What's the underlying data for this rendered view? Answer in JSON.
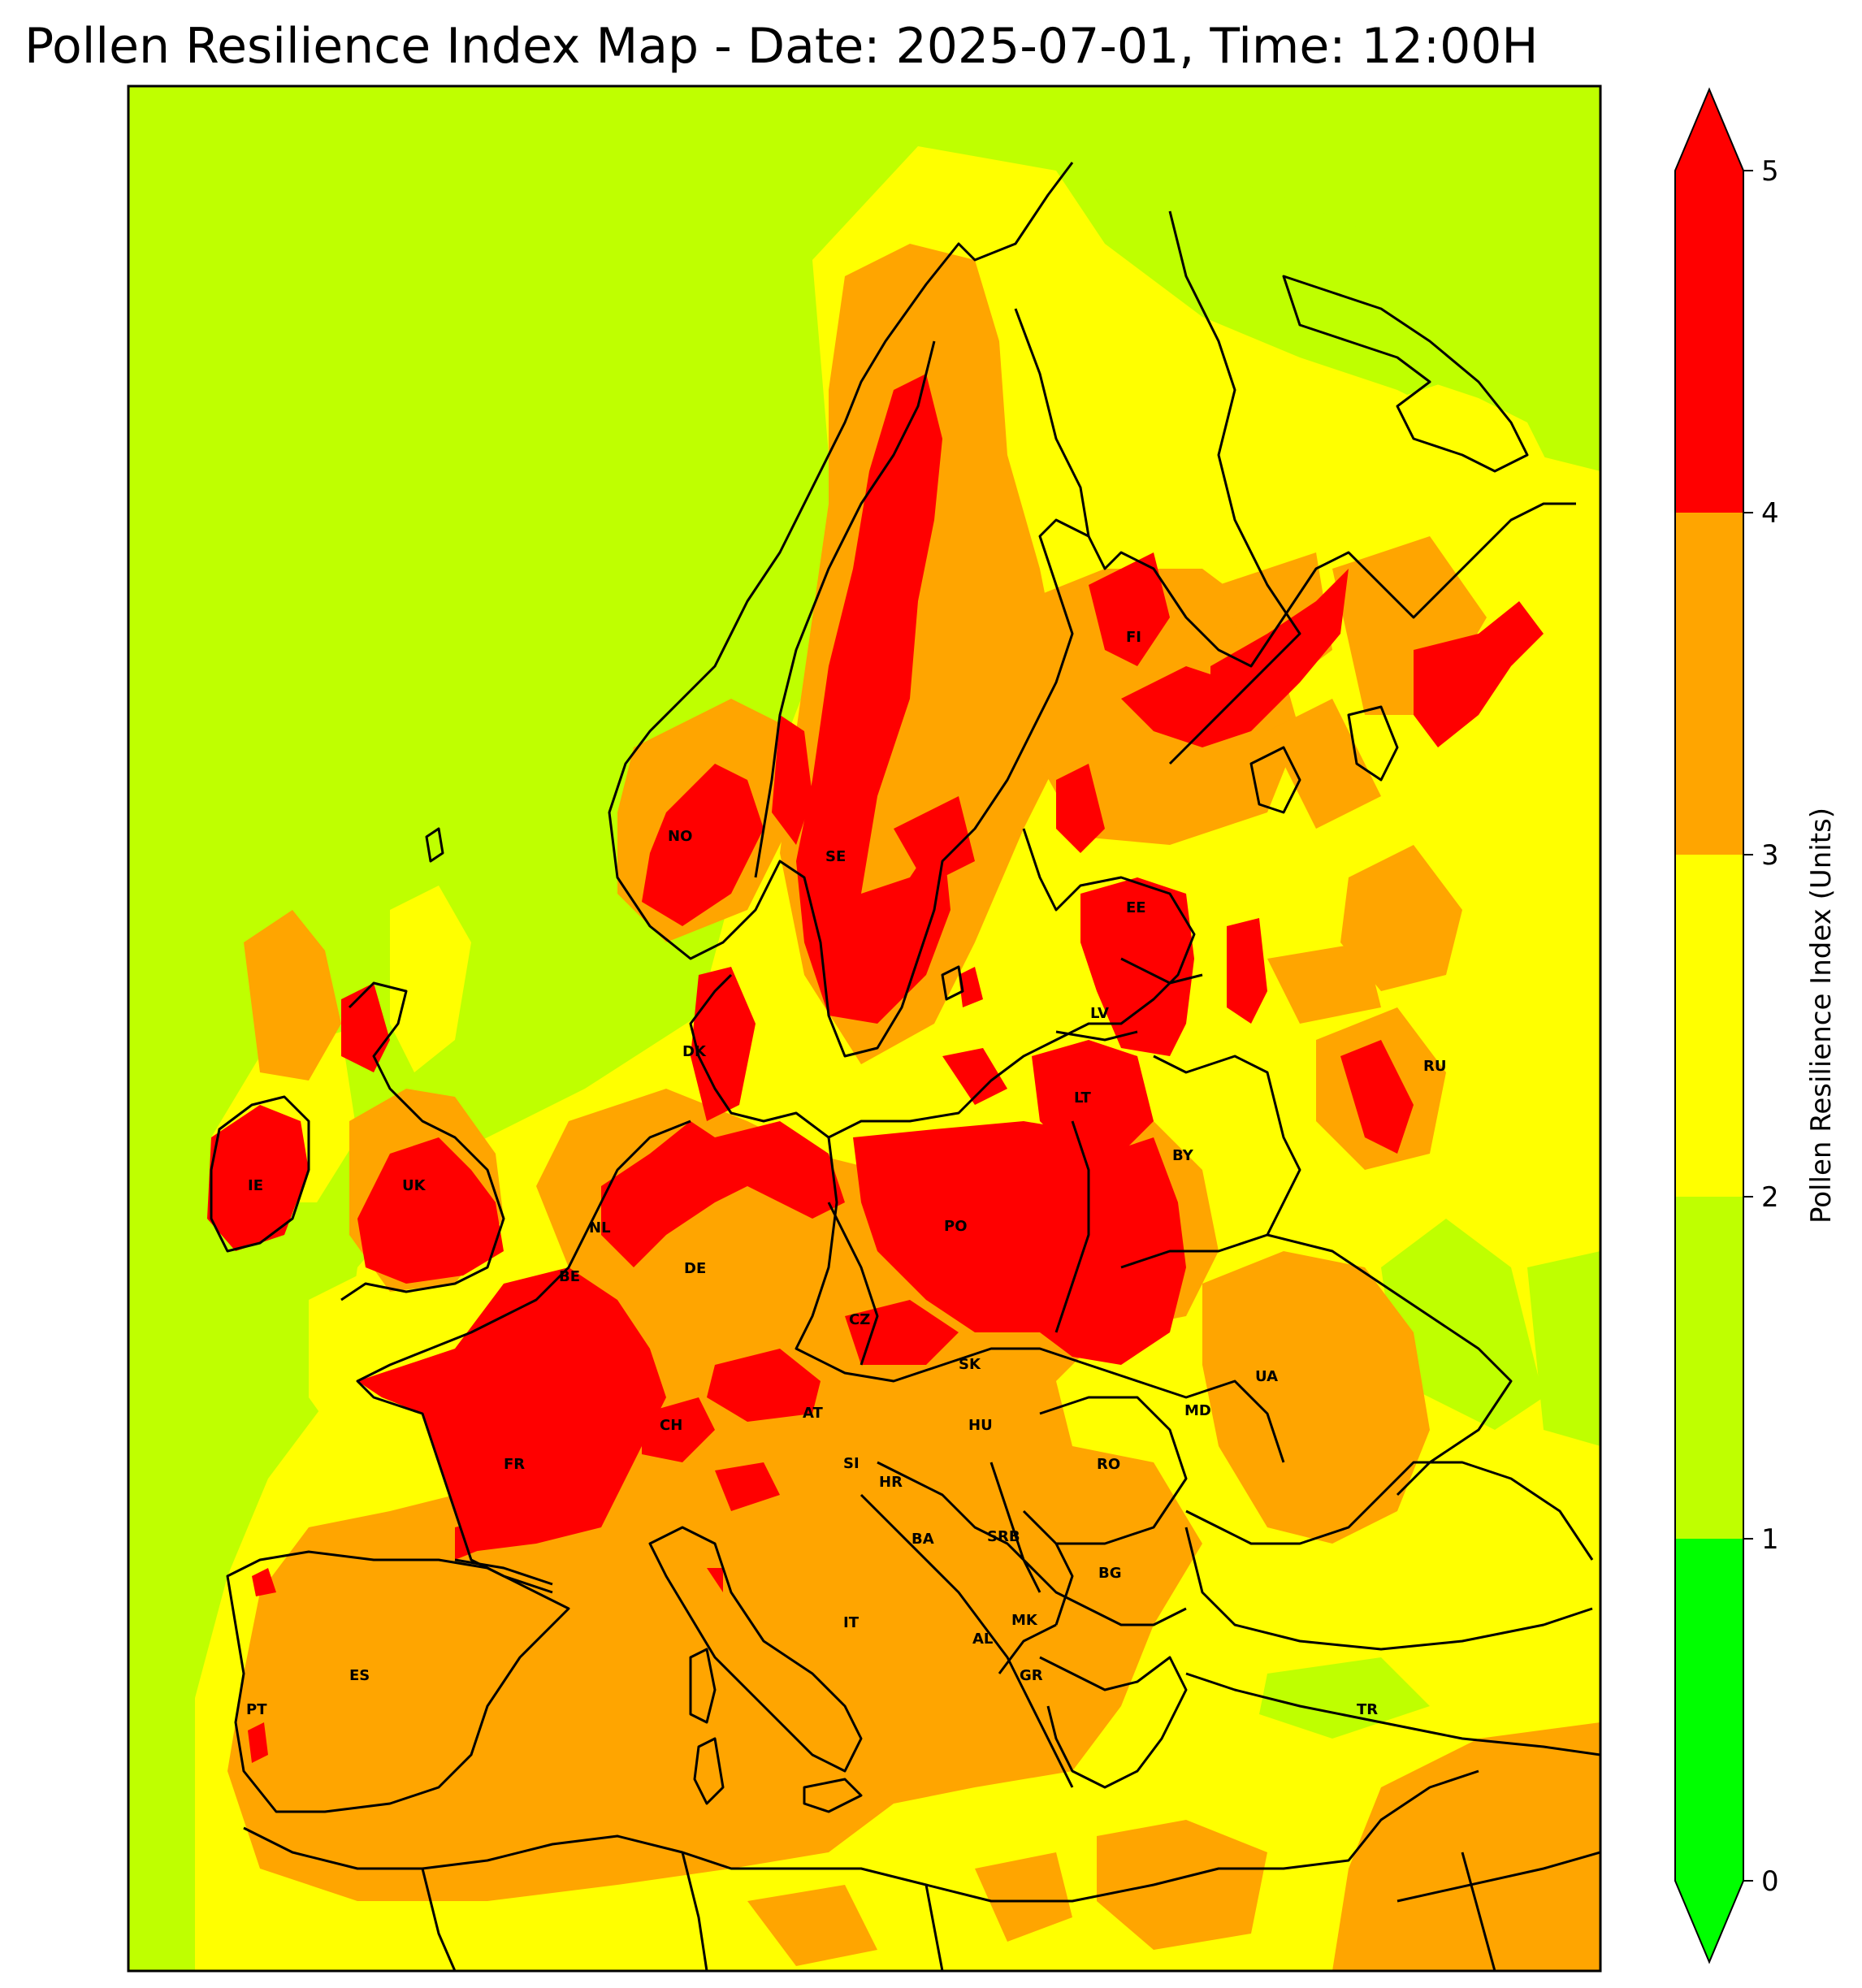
{
  "title": "Pollen Resilience Index Map - Date: 2025-07-01, Time: 12:00H",
  "colorbar": {
    "label": "Pollen Resilience Index (Units)",
    "ticks": [
      "0",
      "1",
      "2",
      "3",
      "4",
      "5"
    ],
    "bands": [
      {
        "from": 0,
        "to": 1,
        "color": "#00ff00"
      },
      {
        "from": 1,
        "to": 2,
        "color": "#bfff00"
      },
      {
        "from": 2,
        "to": 3,
        "color": "#ffff00"
      },
      {
        "from": 3,
        "to": 4,
        "color": "#ffa500"
      },
      {
        "from": 4,
        "to": 5,
        "color": "#ff0000"
      }
    ],
    "extend": "both"
  },
  "map": {
    "background_color": "#bfff00",
    "country_codes": [
      "NO",
      "SE",
      "FI",
      "EE",
      "LV",
      "LT",
      "RU",
      "BY",
      "DK",
      "IE",
      "UK",
      "NL",
      "BE",
      "DE",
      "PO",
      "CZ",
      "SK",
      "UA",
      "MD",
      "FR",
      "CH",
      "AT",
      "HU",
      "RO",
      "SI",
      "HR",
      "BA",
      "SRB",
      "BG",
      "IT",
      "MK",
      "AL",
      "GR",
      "ES",
      "PT",
      "TR"
    ]
  }
}
